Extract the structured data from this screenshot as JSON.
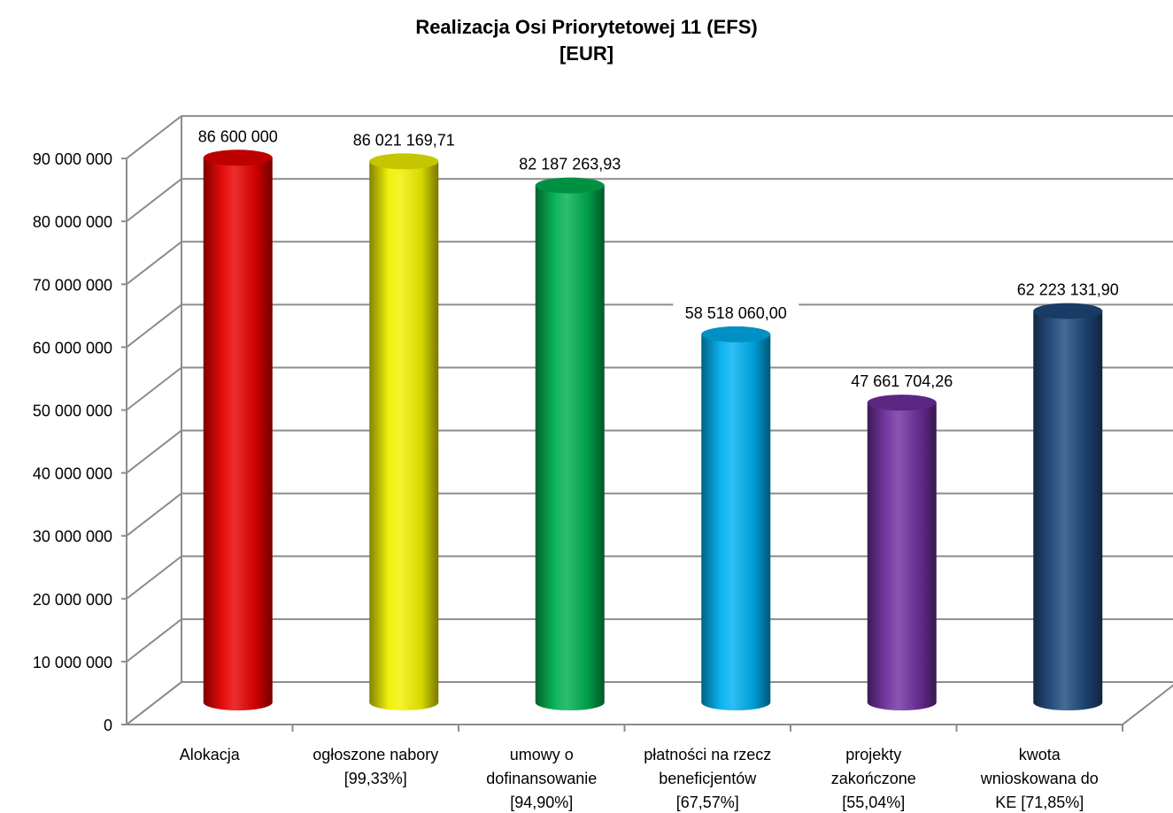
{
  "chart_data": {
    "type": "bar",
    "style": "3d-cylinder",
    "title": "Realizacja Osi Priorytetowej 11 (EFS)",
    "subtitle": "[EUR]",
    "xlabel": "",
    "ylabel": "",
    "ylim": [
      0,
      90000000
    ],
    "ytick_step": 10000000,
    "y_tick_labels": [
      "0",
      "10 000 000",
      "20 000 000",
      "30 000 000",
      "40 000 000",
      "50 000 000",
      "60 000 000",
      "70 000 000",
      "80 000 000",
      "90 000 000"
    ],
    "grid": true,
    "legend": "none",
    "categories": [
      [
        "Alokacja"
      ],
      [
        "ogłoszone nabory",
        "[99,33%]"
      ],
      [
        "umowy o",
        "dofinansowanie",
        "[94,90%]"
      ],
      [
        "płatności na rzecz",
        "beneficjentów",
        "[67,57%]"
      ],
      [
        "projekty",
        "zakończone",
        "[55,04%]"
      ],
      [
        "kwota",
        "wnioskowana do",
        "KE [71,85%]"
      ]
    ],
    "values": [
      86600000,
      86021169.71,
      82187263.93,
      58518060.0,
      47661704.26,
      62223131.9
    ],
    "data_labels": [
      "86 600 000",
      "86 021 169,71",
      "82 187 263,93",
      "58 518 060,00",
      "47 661 704,26",
      "62 223 131,90"
    ],
    "colors": [
      "#e60000",
      "#f0f000",
      "#00b050",
      "#00b0f0",
      "#7030a0",
      "#1f497d"
    ]
  }
}
